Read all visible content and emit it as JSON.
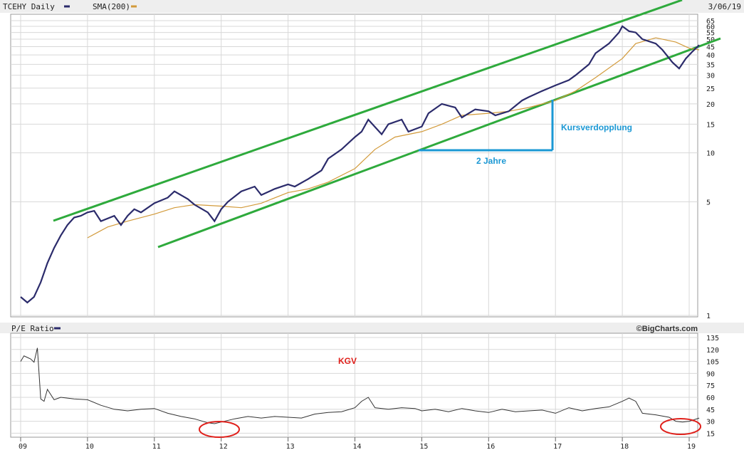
{
  "header": {
    "symbol_label": "TCEHY Daily",
    "sma_label": "SMA(200)",
    "date": "3/06/19"
  },
  "colors": {
    "price": "#2b2b6b",
    "sma": "#d29a3a",
    "channel": "#2eaa3c",
    "annotation": "#1b98d4",
    "kgv_text": "#e0201b",
    "grid": "#d8d8d8",
    "header_bg": "#eeeeee"
  },
  "lower_header": {
    "pe_label": "P/E Ratio",
    "credit": "©BigCharts.com"
  },
  "annotations": {
    "doubling": "Kursverdopplung",
    "two_years": "2 Jahre",
    "kgv": "KGV"
  },
  "chart_data": [
    {
      "type": "line",
      "scale": "log",
      "x_ticks": [
        "09",
        "10",
        "11",
        "12",
        "13",
        "14",
        "15",
        "16",
        "17",
        "18",
        "19"
      ],
      "y_ticks": [
        "1",
        "5",
        "10",
        "15",
        "20",
        "25",
        "30",
        "35",
        "40",
        "45",
        "50",
        "55",
        "60",
        "65"
      ],
      "y_tick_values": [
        1,
        5,
        10,
        15,
        20,
        25,
        30,
        35,
        40,
        45,
        50,
        55,
        60,
        65
      ],
      "series": [
        {
          "name": "TCEHY Daily",
          "x": [
            2009.0,
            2009.1,
            2009.2,
            2009.3,
            2009.4,
            2009.5,
            2009.6,
            2009.7,
            2009.8,
            2009.9,
            2010.0,
            2010.1,
            2010.2,
            2010.4,
            2010.5,
            2010.6,
            2010.7,
            2010.8,
            2011.0,
            2011.2,
            2011.3,
            2011.5,
            2011.6,
            2011.8,
            2011.9,
            2012.0,
            2012.1,
            2012.3,
            2012.5,
            2012.6,
            2012.8,
            2013.0,
            2013.1,
            2013.3,
            2013.5,
            2013.6,
            2013.8,
            2014.0,
            2014.1,
            2014.2,
            2014.4,
            2014.5,
            2014.7,
            2014.8,
            2015.0,
            2015.1,
            2015.3,
            2015.5,
            2015.6,
            2015.8,
            2016.0,
            2016.1,
            2016.3,
            2016.5,
            2016.6,
            2016.8,
            2017.0,
            2017.2,
            2017.3,
            2017.5,
            2017.6,
            2017.8,
            2017.95,
            2018.0,
            2018.1,
            2018.2,
            2018.3,
            2018.5,
            2018.6,
            2018.75,
            2018.85,
            2018.95,
            2019.05,
            2019.15
          ],
          "y": [
            1.3,
            1.2,
            1.3,
            1.6,
            2.1,
            2.6,
            3.1,
            3.6,
            4.0,
            4.1,
            4.3,
            4.4,
            3.8,
            4.1,
            3.6,
            4.1,
            4.5,
            4.3,
            4.9,
            5.3,
            5.8,
            5.2,
            4.8,
            4.3,
            3.8,
            4.5,
            5.0,
            5.8,
            6.2,
            5.5,
            6.0,
            6.4,
            6.2,
            6.9,
            7.8,
            9.2,
            10.5,
            12.5,
            13.5,
            16.0,
            13.0,
            15.0,
            16.0,
            13.5,
            14.5,
            17.5,
            20.0,
            19.0,
            16.5,
            18.5,
            18.0,
            17.0,
            18.0,
            21.0,
            22.0,
            24.0,
            26.0,
            28.0,
            30.0,
            35.0,
            41.0,
            47.0,
            55.0,
            60.0,
            56.0,
            55.0,
            50.0,
            47.0,
            43.0,
            36.0,
            33.0,
            38.0,
            42.0,
            46.0
          ]
        },
        {
          "name": "SMA(200)",
          "x": [
            2010.0,
            2010.3,
            2010.6,
            2011.0,
            2011.3,
            2011.6,
            2012.0,
            2012.3,
            2012.6,
            2013.0,
            2013.3,
            2013.6,
            2014.0,
            2014.3,
            2014.6,
            2015.0,
            2015.3,
            2015.6,
            2016.0,
            2016.3,
            2016.6,
            2017.0,
            2017.3,
            2017.6,
            2018.0,
            2018.2,
            2018.5,
            2018.8,
            2019.0,
            2019.15
          ],
          "y": [
            3.0,
            3.5,
            3.8,
            4.2,
            4.6,
            4.8,
            4.7,
            4.6,
            4.9,
            5.7,
            6.0,
            6.6,
            8.0,
            10.5,
            12.5,
            13.5,
            15.0,
            17.0,
            17.5,
            18.0,
            19.0,
            21.0,
            24.0,
            29.0,
            38.0,
            47.0,
            51.0,
            48.0,
            44.0,
            43.0
          ]
        }
      ]
    },
    {
      "type": "line",
      "x_ticks": [
        "09",
        "10",
        "11",
        "12",
        "13",
        "14",
        "15",
        "16",
        "17",
        "18",
        "19"
      ],
      "y_ticks": [
        "15",
        "30",
        "45",
        "60",
        "75",
        "90",
        "105",
        "120",
        "135"
      ],
      "y_tick_values": [
        15,
        30,
        45,
        60,
        75,
        90,
        105,
        120,
        135
      ],
      "ylim": [
        10,
        135
      ],
      "series": [
        {
          "name": "P/E Ratio",
          "x": [
            2009.0,
            2009.05,
            2009.1,
            2009.15,
            2009.2,
            2009.25,
            2009.3,
            2009.35,
            2009.4,
            2009.5,
            2009.6,
            2009.8,
            2010.0,
            2010.2,
            2010.4,
            2010.6,
            2010.8,
            2011.0,
            2011.2,
            2011.4,
            2011.6,
            2011.8,
            2011.9,
            2012.0,
            2012.2,
            2012.4,
            2012.6,
            2012.8,
            2013.0,
            2013.2,
            2013.4,
            2013.6,
            2013.8,
            2014.0,
            2014.1,
            2014.2,
            2014.3,
            2014.5,
            2014.7,
            2014.9,
            2015.0,
            2015.2,
            2015.4,
            2015.6,
            2015.8,
            2016.0,
            2016.2,
            2016.4,
            2016.6,
            2016.8,
            2017.0,
            2017.2,
            2017.4,
            2017.6,
            2017.8,
            2018.0,
            2018.1,
            2018.2,
            2018.3,
            2018.5,
            2018.7,
            2018.8,
            2018.9,
            2019.0,
            2019.15
          ],
          "y": [
            105,
            112,
            110,
            108,
            104,
            122,
            58,
            55,
            70,
            57,
            60,
            58,
            57,
            50,
            45,
            43,
            45,
            46,
            40,
            36,
            33,
            28,
            27,
            29,
            33,
            36,
            34,
            36,
            35,
            34,
            39,
            41,
            42,
            47,
            55,
            60,
            47,
            45,
            47,
            46,
            43,
            45,
            42,
            46,
            43,
            41,
            45,
            42,
            43,
            44,
            40,
            47,
            43,
            46,
            48,
            55,
            59,
            55,
            40,
            38,
            35,
            30,
            29,
            30,
            34
          ]
        }
      ]
    }
  ]
}
